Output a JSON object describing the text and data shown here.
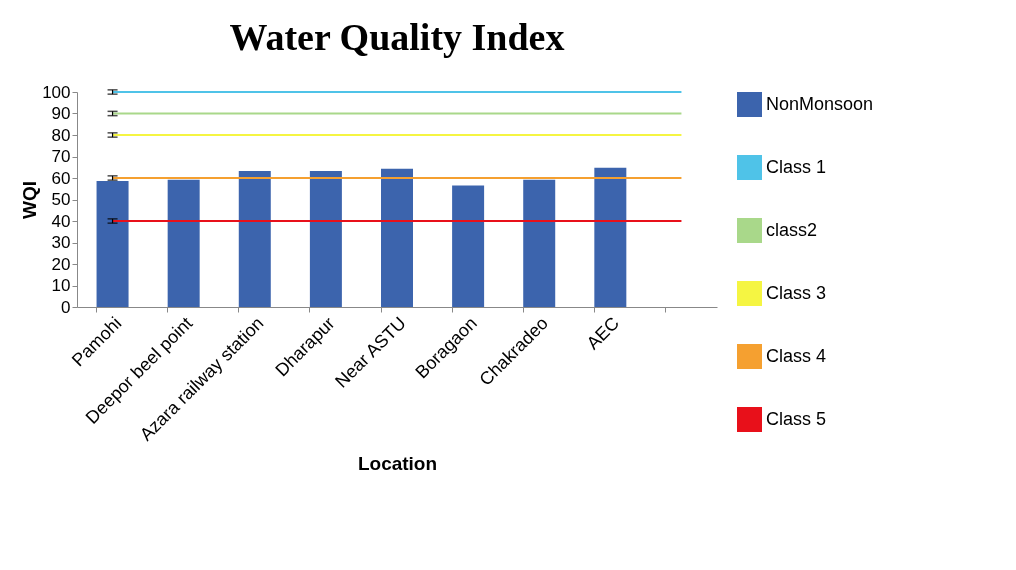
{
  "chart_data": {
    "type": "bar",
    "title": "Water Quality Index",
    "xlabel": "Location",
    "ylabel": "WQI",
    "categories": [
      "Pamohi",
      "Deepor beel point",
      "Azara railway station",
      "Dharapur",
      "Near ASTU",
      "Boragaon",
      "Chakradeo",
      "AEC",
      null
    ],
    "series": [
      {
        "name": "NonMonsoon",
        "color": "#3c64ad",
        "values": [
          58.6,
          59.2,
          63.3,
          63.3,
          64.3,
          56.5,
          59.2,
          64.8,
          null
        ]
      },
      {
        "name": "Class 1",
        "type": "line",
        "color": "#4fc3e8",
        "values": [
          100,
          100,
          100,
          100,
          100,
          100,
          100,
          100,
          100
        ],
        "errors": [
          1,
          null,
          null,
          null,
          null,
          null,
          null,
          null,
          null
        ]
      },
      {
        "name": "class2",
        "type": "line",
        "color": "#a9d88a",
        "values": [
          90,
          90,
          90,
          90,
          90,
          90,
          90,
          90,
          90
        ],
        "errors": [
          1,
          null,
          null,
          null,
          null,
          null,
          null,
          null,
          null
        ]
      },
      {
        "name": "Class 3",
        "type": "line",
        "color": "#f5f542",
        "values": [
          80,
          80,
          80,
          80,
          80,
          80,
          80,
          80,
          80
        ],
        "errors": [
          1,
          null,
          null,
          null,
          null,
          null,
          null,
          null,
          null
        ]
      },
      {
        "name": "Class 4",
        "type": "line",
        "color": "#f5a030",
        "values": [
          60,
          60,
          60,
          60,
          60,
          60,
          60,
          60,
          60
        ],
        "errors": [
          1,
          null,
          null,
          null,
          null,
          null,
          null,
          null,
          null
        ]
      },
      {
        "name": "Class 5",
        "type": "line",
        "color": "#e8101a",
        "values": [
          40,
          40,
          40,
          40,
          40,
          40,
          40,
          40,
          40
        ],
        "errors": [
          1,
          null,
          null,
          null,
          null,
          null,
          null,
          null,
          null
        ]
      }
    ],
    "ylim": [
      0,
      100
    ],
    "yticks": [
      0,
      10,
      20,
      30,
      40,
      50,
      60,
      70,
      80,
      90,
      100
    ],
    "grid": false,
    "legend": "right"
  }
}
